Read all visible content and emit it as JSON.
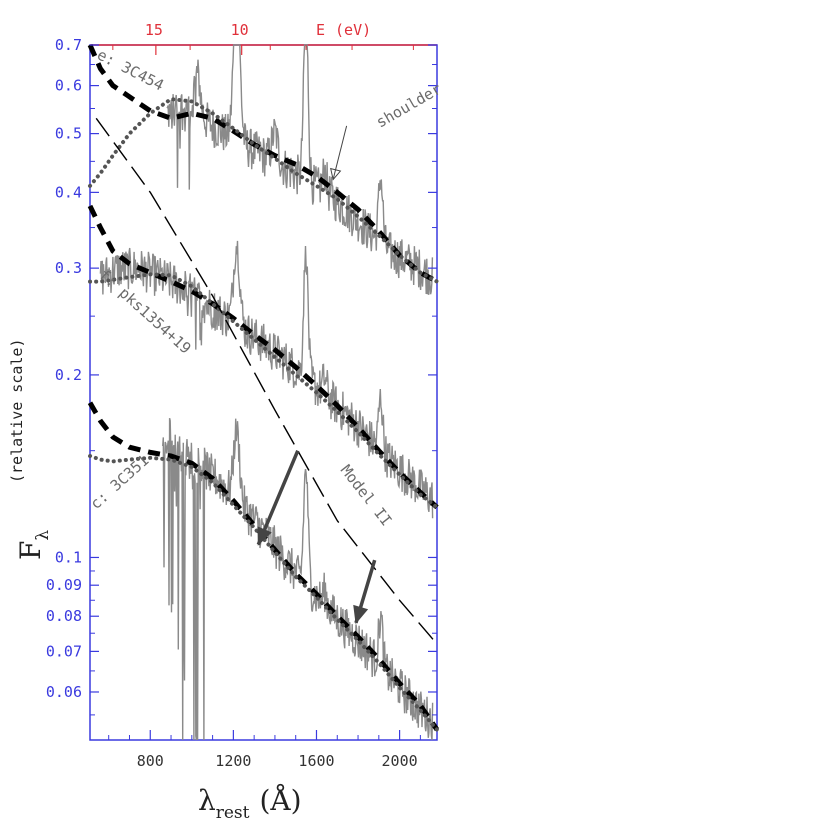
{
  "chart_data": {
    "type": "line",
    "title": "",
    "xlabel": "λ",
    "xlabel_sub": "rest",
    "xlabel_unit": "(Å)",
    "ylabel": "F",
    "ylabel_sub": "λ",
    "ylabel_extra": "(relative scale)",
    "x2label": "E",
    "x2label_unit": "(eV)",
    "xlim": [
      510,
      2180
    ],
    "ylim": [
      0.05,
      0.7
    ],
    "yscale": "log",
    "grid": false,
    "legend": "none",
    "x_ticks": [
      800,
      1200,
      1600,
      2000
    ],
    "x_tick_labels": [
      "800",
      "1200",
      "1600",
      "2000"
    ],
    "y_ticks": [
      0.06,
      0.07,
      0.08,
      0.09,
      0.1,
      0.2,
      0.3,
      0.4,
      0.5,
      0.6,
      0.7
    ],
    "y_tick_labels": [
      "0.06",
      "0.07",
      "0.08",
      "0.09",
      "0.1",
      "0.2",
      "0.3",
      "0.4",
      "0.5",
      "0.6",
      "0.7"
    ],
    "top_ticks": [
      {
        "label": "15",
        "lambda": 827
      },
      {
        "label": "10",
        "lambda": 1240
      }
    ],
    "annotations": [
      {
        "id": "spec_e",
        "text": "e: 3C454"
      },
      {
        "id": "spec_f",
        "text": "f: pks1354+19"
      },
      {
        "id": "spec_c",
        "text": "c: 3C351"
      },
      {
        "id": "model",
        "text": "Model II"
      },
      {
        "id": "shoulder",
        "text": "shoulder"
      }
    ],
    "series": [
      {
        "id": "e_spectrum",
        "style": "spectrum",
        "color": "#8a8a8a",
        "continuum": [
          [
            880,
            0.54
          ],
          [
            950,
            0.55
          ],
          [
            1050,
            0.53
          ],
          [
            1200,
            0.49
          ],
          [
            1350,
            0.46
          ],
          [
            1500,
            0.43
          ],
          [
            1650,
            0.4
          ],
          [
            1800,
            0.36
          ],
          [
            1950,
            0.32
          ],
          [
            2100,
            0.3
          ],
          [
            2160,
            0.29
          ]
        ],
        "lines": [
          [
            1026,
            0.18
          ],
          [
            1216,
            0.75
          ],
          [
            1400,
            0.12
          ],
          [
            1549,
            0.85
          ],
          [
            1640,
            0.08
          ],
          [
            1909,
            0.28
          ]
        ],
        "dips": [
          [
            900,
            0.6
          ],
          [
            960,
            0.3
          ]
        ]
      },
      {
        "id": "e_model_dashed",
        "style": "thick-dashed",
        "x": [
          510,
          560,
          620,
          700,
          800,
          900,
          1000,
          1100,
          1200,
          1300,
          1400,
          1500,
          1600,
          1700,
          1800,
          1900,
          2000,
          2100,
          2180
        ],
        "y": [
          0.7,
          0.64,
          0.6,
          0.575,
          0.545,
          0.53,
          0.54,
          0.53,
          0.505,
          0.48,
          0.46,
          0.445,
          0.425,
          0.4,
          0.375,
          0.345,
          0.315,
          0.295,
          0.285
        ]
      },
      {
        "id": "e_model_dotted",
        "style": "thick-dotted",
        "x": [
          510,
          560,
          620,
          700,
          800,
          900,
          1000,
          1100,
          1200,
          1300,
          1400,
          1500,
          1600,
          1700,
          1800,
          1900,
          2000,
          2100,
          2180
        ],
        "y": [
          0.41,
          0.43,
          0.46,
          0.5,
          0.54,
          0.57,
          0.565,
          0.54,
          0.51,
          0.48,
          0.455,
          0.43,
          0.41,
          0.39,
          0.365,
          0.34,
          0.315,
          0.295,
          0.285
        ]
      },
      {
        "id": "f_spectrum",
        "style": "spectrum",
        "color": "#8a8a8a",
        "continuum": [
          [
            560,
            0.29
          ],
          [
            650,
            0.3
          ],
          [
            750,
            0.3
          ],
          [
            850,
            0.29
          ],
          [
            950,
            0.28
          ],
          [
            1050,
            0.265
          ],
          [
            1200,
            0.245
          ],
          [
            1350,
            0.225
          ],
          [
            1500,
            0.205
          ],
          [
            1650,
            0.185
          ],
          [
            1800,
            0.165
          ],
          [
            1950,
            0.145
          ],
          [
            2100,
            0.13
          ],
          [
            2160,
            0.125
          ]
        ],
        "lines": [
          [
            1216,
            0.35
          ],
          [
            1549,
            0.6
          ],
          [
            1640,
            0.06
          ],
          [
            1909,
            0.22
          ]
        ],
        "dips": [
          [
            1030,
            0.15
          ]
        ]
      },
      {
        "id": "f_model_dashed",
        "style": "thick-dashed",
        "x": [
          510,
          560,
          620,
          700,
          800,
          900,
          1000,
          1100,
          1200,
          1300,
          1400,
          1500,
          1600,
          1700,
          1800,
          1900,
          2000,
          2100,
          2180
        ],
        "y": [
          0.38,
          0.35,
          0.32,
          0.305,
          0.295,
          0.285,
          0.275,
          0.262,
          0.248,
          0.233,
          0.22,
          0.206,
          0.192,
          0.178,
          0.164,
          0.15,
          0.138,
          0.128,
          0.121
        ]
      },
      {
        "id": "f_model_dotted",
        "style": "thick-dotted",
        "x": [
          510,
          560,
          620,
          700,
          800,
          900,
          1000,
          1100,
          1200,
          1300,
          1400,
          1500,
          1600,
          1700,
          1800,
          1900,
          2000,
          2100,
          2180
        ],
        "y": [
          0.285,
          0.285,
          0.287,
          0.29,
          0.293,
          0.292,
          0.28,
          0.262,
          0.245,
          0.229,
          0.214,
          0.2,
          0.187,
          0.174,
          0.161,
          0.148,
          0.137,
          0.127,
          0.121
        ]
      },
      {
        "id": "c_spectrum",
        "style": "spectrum",
        "color": "#8a8a8a",
        "continuum": [
          [
            860,
            0.15
          ],
          [
            950,
            0.148
          ],
          [
            1050,
            0.142
          ],
          [
            1150,
            0.132
          ],
          [
            1250,
            0.121
          ],
          [
            1350,
            0.11
          ],
          [
            1450,
            0.099
          ],
          [
            1550,
            0.09
          ],
          [
            1650,
            0.083
          ],
          [
            1750,
            0.076
          ],
          [
            1850,
            0.07
          ],
          [
            1950,
            0.064
          ],
          [
            2100,
            0.056
          ],
          [
            2160,
            0.054
          ]
        ],
        "lines": [
          [
            900,
            0.08
          ],
          [
            1216,
            0.3
          ],
          [
            1549,
            0.55
          ],
          [
            1640,
            0.05
          ],
          [
            1909,
            0.2
          ]
        ],
        "dips": [
          [
            860,
            0.9
          ],
          [
            950,
            0.95
          ],
          [
            1030,
            0.95
          ]
        ]
      },
      {
        "id": "c_model_dashed",
        "style": "thick-dashed",
        "x": [
          510,
          560,
          620,
          700,
          800,
          900,
          1000,
          1100,
          1200,
          1300,
          1400,
          1500,
          1600,
          1700,
          1800,
          1900,
          2000,
          2100,
          2180
        ],
        "y": [
          0.18,
          0.168,
          0.158,
          0.152,
          0.149,
          0.147,
          0.143,
          0.135,
          0.124,
          0.113,
          0.103,
          0.094,
          0.087,
          0.08,
          0.074,
          0.068,
          0.062,
          0.057,
          0.052
        ]
      },
      {
        "id": "c_model_dotted",
        "style": "thick-dotted",
        "x": [
          510,
          560,
          620,
          700,
          800,
          900,
          1000,
          1100,
          1200,
          1300,
          1400,
          1500,
          1600,
          1700,
          1800,
          1900,
          2000,
          2100,
          2180
        ],
        "y": [
          0.147,
          0.145,
          0.144,
          0.145,
          0.146,
          0.145,
          0.141,
          0.133,
          0.122,
          0.112,
          0.102,
          0.093,
          0.086,
          0.079,
          0.073,
          0.067,
          0.061,
          0.056,
          0.052
        ]
      },
      {
        "id": "model_ii",
        "style": "thin-long-dash",
        "x": [
          540,
          800,
          1100,
          1400,
          1700,
          2000,
          2180
        ],
        "y": [
          0.53,
          0.4,
          0.27,
          0.175,
          0.115,
          0.085,
          0.072
        ]
      }
    ],
    "arrows": [
      {
        "from": [
          1510,
          0.15
        ],
        "to": [
          1320,
          0.105
        ]
      },
      {
        "from": [
          1880,
          0.099
        ],
        "to": [
          1790,
          0.078
        ]
      },
      {
        "from": [
          1745,
          0.515
        ],
        "to": [
          1680,
          0.42
        ]
      }
    ]
  }
}
